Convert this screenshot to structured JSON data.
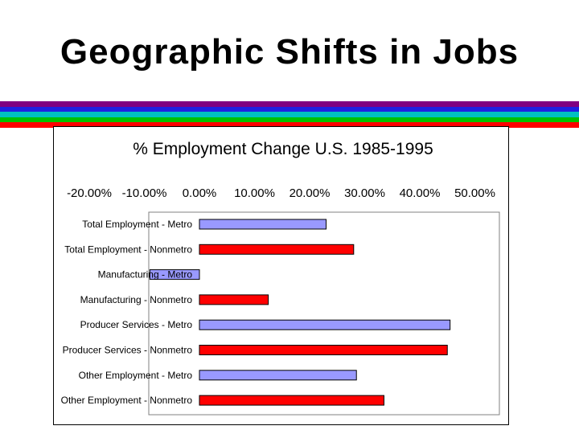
{
  "slide": {
    "title": "Geographic Shifts in Jobs",
    "stripe_colors": [
      "#800080",
      "#2020e0",
      "#00c0c0",
      "#00c000",
      "#ff0000"
    ]
  },
  "chart_data": {
    "type": "bar",
    "orientation": "horizontal",
    "title": "% Employment Change U.S. 1985-1995",
    "xlabel": "",
    "ylabel": "",
    "xlim": [
      -20,
      50
    ],
    "x_ticks": [
      "-20.00%",
      "-10.00%",
      "0.00%",
      "10.00%",
      "20.00%",
      "30.00%",
      "40.00%",
      "50.00%"
    ],
    "x_axis_position": "top",
    "grid": false,
    "legend": "none",
    "categories": [
      "Total Employment - Metro",
      "Total Employment - Nonmetro",
      "Manufacturing - Metro",
      "Manufacturing - Nonmetro",
      "Producer Services - Metro",
      "Producer Services - Nonmetro",
      "Other Employment - Metro",
      "Other Employment - Nonmetro"
    ],
    "values": [
      23.0,
      28.0,
      -9.0,
      12.5,
      45.5,
      45.0,
      28.5,
      33.5
    ],
    "colors": [
      "#9999ff",
      "#ff0000",
      "#9999ff",
      "#ff0000",
      "#9999ff",
      "#ff0000",
      "#9999ff",
      "#ff0000"
    ]
  }
}
